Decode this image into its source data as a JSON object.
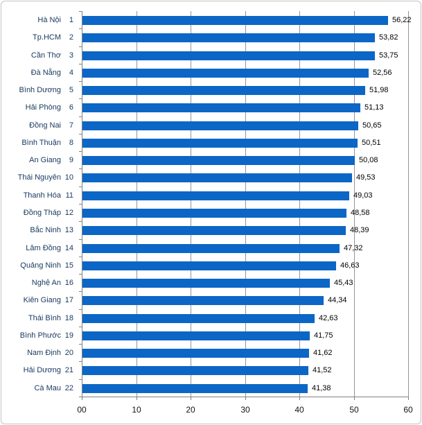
{
  "chart_data": {
    "type": "bar",
    "orientation": "horizontal",
    "title": "",
    "xlabel": "",
    "ylabel": "",
    "legend": "none",
    "grid": "vertical gridlines every 10 units",
    "xlim": [
      0,
      60
    ],
    "x_tick_labels": [
      "00",
      "10",
      "20",
      "30",
      "40",
      "50",
      "60"
    ],
    "x_tick_values": [
      0,
      10,
      20,
      30,
      40,
      50,
      60
    ],
    "categories": [
      "Hà Nội",
      "Tp.HCM",
      "Cần Thơ",
      "Đà Nẵng",
      "Bình Dương",
      "Hải Phòng",
      "Đồng Nai",
      "Bình Thuận",
      "An Giang",
      "Thái Nguyên",
      "Thanh Hóa",
      "Đồng Tháp",
      "Bắc Ninh",
      "Lâm Đồng",
      "Quảng Ninh",
      "Nghệ An",
      "Kiên Giang",
      "Thái Bình",
      "Bình Phước",
      "Nam Định",
      "Hải Dương",
      "Cà Mau"
    ],
    "ranks": [
      "1",
      "2",
      "3",
      "4",
      "5",
      "6",
      "7",
      "8",
      "9",
      "10",
      "11",
      "12",
      "13",
      "14",
      "15",
      "16",
      "17",
      "18",
      "19",
      "20",
      "21",
      "22"
    ],
    "values": [
      56.22,
      53.82,
      53.75,
      52.56,
      51.98,
      51.13,
      50.65,
      50.51,
      50.08,
      49.53,
      49.03,
      48.58,
      48.39,
      47.32,
      46.63,
      45.43,
      44.34,
      42.63,
      41.75,
      41.62,
      41.52,
      41.38
    ],
    "value_labels": [
      "56,22",
      "53,82",
      "53,75",
      "52,56",
      "51,98",
      "51,13",
      "50,65",
      "50,51",
      "50,08",
      "49,53",
      "49,03",
      "48,58",
      "48,39",
      "47,32",
      "46,63",
      "45,43",
      "44,34",
      "42,63",
      "41,75",
      "41,62",
      "41,52",
      "41,38"
    ],
    "colors": {
      "bar": "#0C66C6",
      "category_label": "#17375E",
      "value_label": "#000000",
      "gridline": "#949494",
      "axis_line": "#808080"
    }
  }
}
